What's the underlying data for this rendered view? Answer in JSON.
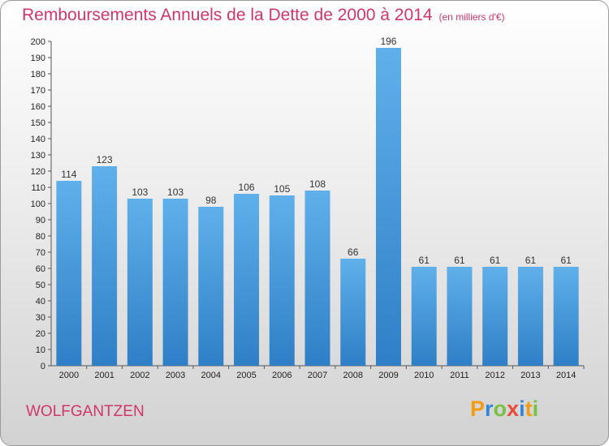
{
  "header": {
    "title": "Remboursements Annuels de la Dette de 2000 à 2014",
    "subtitle": "(en milliers d'€)"
  },
  "footer": {
    "commune": "WOLFGANTZEN",
    "logo_text": "Proxiti"
  },
  "colors": {
    "title": "#d1366b",
    "bar_top": "#5fb0ea",
    "bar_bottom": "#2f7fc7",
    "logo_letters": [
      "#f39c12",
      "#2e86de",
      "#7ac142",
      "#e74c3c",
      "#2e86de",
      "#f39c12",
      "#7ac142"
    ]
  },
  "chart_data": {
    "type": "bar",
    "categories": [
      "2000",
      "2001",
      "2002",
      "2003",
      "2004",
      "2005",
      "2006",
      "2007",
      "2008",
      "2009",
      "2010",
      "2011",
      "2012",
      "2013",
      "2014"
    ],
    "values": [
      114,
      123,
      103,
      103,
      98,
      106,
      105,
      108,
      66,
      196,
      61,
      61,
      61,
      61,
      61
    ],
    "title": "Remboursements Annuels de la Dette de 2000 à 2014",
    "xlabel": "",
    "ylabel": "",
    "ylim": [
      0,
      200
    ],
    "ytick_step": 10,
    "grid": false,
    "data_labels": true
  }
}
